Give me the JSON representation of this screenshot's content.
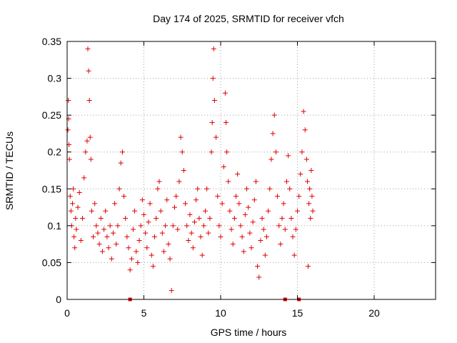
{
  "chart_data": {
    "type": "scatter",
    "title": "Day 174 of 2025, SRMTID for receiver vfch",
    "xlabel": "GPS time / hours",
    "ylabel": "SRMTID / TECUs",
    "xlim": [
      0,
      24
    ],
    "ylim": [
      0,
      0.35
    ],
    "xticks": [
      0,
      5,
      10,
      15,
      20
    ],
    "yticks": [
      0,
      0.05,
      0.1,
      0.15,
      0.2,
      0.25,
      0.3,
      0.35
    ],
    "xtick_labels": [
      "0",
      "5",
      "10",
      "15",
      "20"
    ],
    "ytick_labels": [
      "0",
      "0.05",
      "0.1",
      "0.15",
      "0.2",
      "0.25",
      "0.3",
      "0.35"
    ],
    "grid": true,
    "marker": "+",
    "color": "#e00000",
    "series": [
      {
        "points": [
          [
            0.05,
            0.23
          ],
          [
            0.08,
            0.27
          ],
          [
            0.1,
            0.245
          ],
          [
            0.12,
            0.21
          ],
          [
            0.15,
            0.19
          ],
          [
            0.2,
            0.14
          ],
          [
            0.25,
            0.12
          ],
          [
            0.3,
            0.1
          ],
          [
            0.35,
            0.13
          ],
          [
            0.4,
            0.15
          ],
          [
            0.45,
            0.085
          ],
          [
            0.5,
            0.07
          ],
          [
            0.55,
            0.11
          ],
          [
            0.6,
            0.095
          ],
          [
            0.7,
            0.125
          ],
          [
            0.8,
            0.145
          ],
          [
            0.9,
            0.08
          ],
          [
            1.0,
            0.11
          ],
          [
            1.1,
            0.165
          ],
          [
            1.2,
            0.2
          ],
          [
            1.3,
            0.215
          ],
          [
            1.35,
            0.34
          ],
          [
            1.4,
            0.31
          ],
          [
            1.45,
            0.27
          ],
          [
            1.5,
            0.22
          ],
          [
            1.55,
            0.19
          ],
          [
            1.6,
            0.12
          ],
          [
            1.7,
            0.085
          ],
          [
            1.8,
            0.13
          ],
          [
            1.9,
            0.1
          ],
          [
            2.0,
            0.09
          ],
          [
            2.1,
            0.075
          ],
          [
            2.2,
            0.11
          ],
          [
            2.3,
            0.065
          ],
          [
            2.4,
            0.095
          ],
          [
            2.5,
            0.12
          ],
          [
            2.6,
            0.085
          ],
          [
            2.7,
            0.07
          ],
          [
            2.8,
            0.1
          ],
          [
            2.9,
            0.055
          ],
          [
            3.0,
            0.09
          ],
          [
            3.1,
            0.13
          ],
          [
            3.2,
            0.075
          ],
          [
            3.3,
            0.1
          ],
          [
            3.4,
            0.15
          ],
          [
            3.5,
            0.185
          ],
          [
            3.6,
            0.2
          ],
          [
            3.7,
            0.14
          ],
          [
            3.8,
            0.11
          ],
          [
            3.9,
            0.085
          ],
          [
            4.0,
            0.07
          ],
          [
            4.1,
            0.04
          ],
          [
            4.2,
            0.055
          ],
          [
            4.3,
            0.095
          ],
          [
            4.4,
            0.12
          ],
          [
            4.5,
            0.065
          ],
          [
            4.6,
            0.05
          ],
          [
            4.7,
            0.08
          ],
          [
            4.8,
            0.1
          ],
          [
            4.9,
            0.135
          ],
          [
            5.0,
            0.115
          ],
          [
            5.1,
            0.09
          ],
          [
            5.2,
            0.07
          ],
          [
            5.3,
            0.105
          ],
          [
            5.4,
            0.13
          ],
          [
            5.5,
            0.06
          ],
          [
            5.6,
            0.045
          ],
          [
            5.7,
            0.085
          ],
          [
            5.8,
            0.11
          ],
          [
            5.9,
            0.15
          ],
          [
            6.0,
            0.16
          ],
          [
            6.1,
            0.12
          ],
          [
            6.2,
            0.09
          ],
          [
            6.3,
            0.065
          ],
          [
            6.4,
            0.1
          ],
          [
            6.5,
            0.135
          ],
          [
            6.6,
            0.075
          ],
          [
            6.7,
            0.055
          ],
          [
            6.8,
            0.012
          ],
          [
            6.9,
            0.1
          ],
          [
            7.0,
            0.125
          ],
          [
            7.1,
            0.14
          ],
          [
            7.2,
            0.095
          ],
          [
            7.3,
            0.16
          ],
          [
            7.4,
            0.22
          ],
          [
            7.5,
            0.2
          ],
          [
            7.6,
            0.175
          ],
          [
            7.7,
            0.13
          ],
          [
            7.8,
            0.1
          ],
          [
            7.9,
            0.08
          ],
          [
            8.0,
            0.115
          ],
          [
            8.1,
            0.09
          ],
          [
            8.2,
            0.07
          ],
          [
            8.3,
            0.105
          ],
          [
            8.4,
            0.135
          ],
          [
            8.5,
            0.15
          ],
          [
            8.6,
            0.11
          ],
          [
            8.7,
            0.085
          ],
          [
            8.8,
            0.06
          ],
          [
            8.9,
            0.1
          ],
          [
            9.0,
            0.12
          ],
          [
            9.1,
            0.15
          ],
          [
            9.2,
            0.09
          ],
          [
            9.3,
            0.11
          ],
          [
            9.4,
            0.2
          ],
          [
            9.45,
            0.24
          ],
          [
            9.5,
            0.3
          ],
          [
            9.55,
            0.34
          ],
          [
            9.6,
            0.27
          ],
          [
            9.7,
            0.22
          ],
          [
            9.8,
            0.14
          ],
          [
            9.9,
            0.1
          ],
          [
            10.0,
            0.085
          ],
          [
            10.1,
            0.13
          ],
          [
            10.2,
            0.18
          ],
          [
            10.3,
            0.28
          ],
          [
            10.35,
            0.24
          ],
          [
            10.4,
            0.2
          ],
          [
            10.5,
            0.16
          ],
          [
            10.6,
            0.12
          ],
          [
            10.7,
            0.095
          ],
          [
            10.8,
            0.075
          ],
          [
            10.9,
            0.11
          ],
          [
            11.0,
            0.14
          ],
          [
            11.1,
            0.17
          ],
          [
            11.2,
            0.13
          ],
          [
            11.3,
            0.1
          ],
          [
            11.4,
            0.085
          ],
          [
            11.5,
            0.065
          ],
          [
            11.6,
            0.115
          ],
          [
            11.7,
            0.15
          ],
          [
            11.8,
            0.125
          ],
          [
            11.9,
            0.09
          ],
          [
            12.0,
            0.07
          ],
          [
            12.1,
            0.105
          ],
          [
            12.2,
            0.135
          ],
          [
            12.3,
            0.16
          ],
          [
            12.4,
            0.045
          ],
          [
            12.5,
            0.03
          ],
          [
            12.6,
            0.08
          ],
          [
            12.7,
            0.11
          ],
          [
            12.8,
            0.095
          ],
          [
            12.9,
            0.06
          ],
          [
            13.0,
            0.085
          ],
          [
            13.1,
            0.12
          ],
          [
            13.2,
            0.15
          ],
          [
            13.3,
            0.19
          ],
          [
            13.4,
            0.225
          ],
          [
            13.5,
            0.25
          ],
          [
            13.6,
            0.2
          ],
          [
            13.7,
            0.14
          ],
          [
            13.8,
            0.1
          ],
          [
            13.9,
            0.075
          ],
          [
            14.0,
            0.11
          ],
          [
            14.1,
            0.13
          ],
          [
            14.2,
            0.095
          ],
          [
            14.3,
            0.16
          ],
          [
            14.4,
            0.195
          ],
          [
            14.5,
            0.15
          ],
          [
            14.6,
            0.11
          ],
          [
            14.7,
            0.085
          ],
          [
            14.8,
            0.06
          ],
          [
            14.9,
            0.095
          ],
          [
            15.0,
            0.12
          ],
          [
            15.1,
            0.14
          ],
          [
            15.2,
            0.17
          ],
          [
            15.3,
            0.2
          ],
          [
            15.4,
            0.255
          ],
          [
            15.5,
            0.23
          ],
          [
            15.6,
            0.19
          ],
          [
            15.65,
            0.16
          ],
          [
            15.7,
            0.045
          ],
          [
            15.75,
            0.13
          ],
          [
            15.8,
            0.15
          ],
          [
            15.85,
            0.11
          ],
          [
            15.9,
            0.175
          ],
          [
            15.95,
            0.14
          ],
          [
            16.0,
            0.12
          ]
        ]
      }
    ],
    "zero_markers": [
      4.1,
      14.2,
      15.1
    ]
  }
}
